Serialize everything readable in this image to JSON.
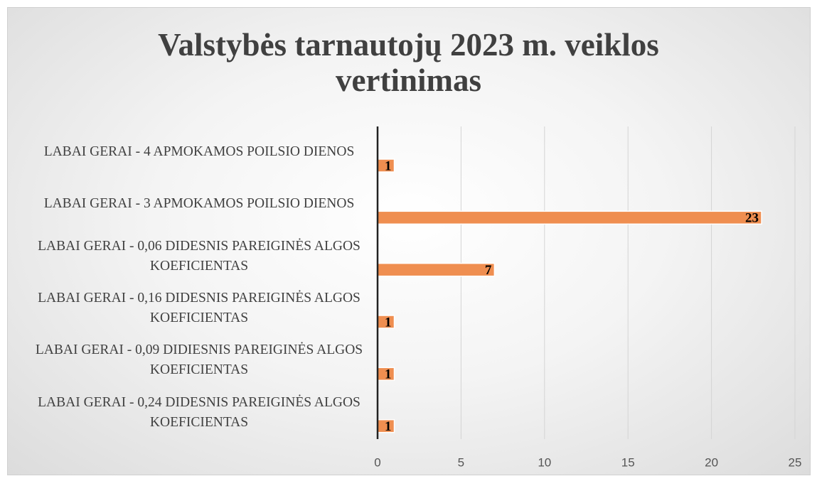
{
  "chart_data": {
    "type": "barh",
    "title": "Valstybės tarnautojų 2023 m. veiklos vertinimas",
    "categories": [
      "LABAI GERAI - 4 APMOKAMOS POILSIO DIENOS",
      "LABAI GERAI - 3 APMOKAMOS POILSIO DIENOS",
      "LABAI GERAI - 0,06 DIDESNIS PAREIGINĖS ALGOS KOEFICIENTAS",
      "LABAI GERAI - 0,16 DIDESNIS PAREIGINĖS ALGOS KOEFICIENTAS",
      "LABAI GERAI - 0,09 DIDIESNIS PAREIGINĖS ALGOS KOEFICIENTAS",
      "LABAI GERAI - 0,24 DIDESNIS PAREIGINĖS ALGOS KOEFICIENTAS"
    ],
    "values": [
      1,
      23,
      7,
      1,
      1,
      1
    ],
    "color": "#ef8e50",
    "xlim": [
      0,
      25
    ],
    "xticks": [
      0,
      5,
      10,
      15,
      20,
      25
    ],
    "grid": true
  }
}
